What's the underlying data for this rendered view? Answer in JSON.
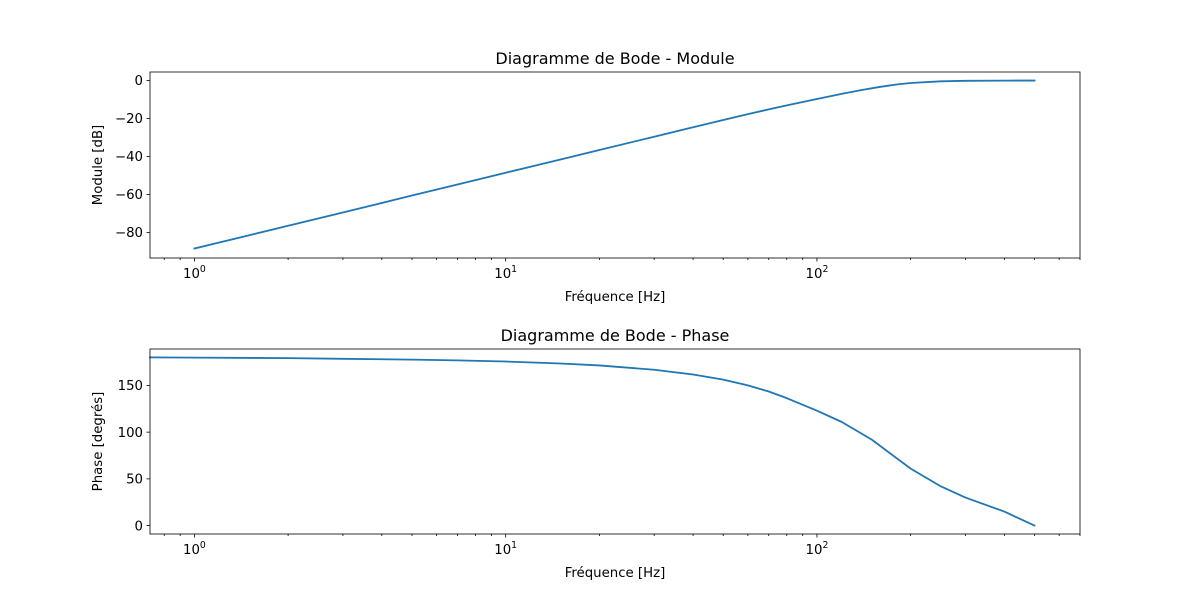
{
  "chart_data": [
    {
      "type": "line",
      "title": "Diagramme de Bode - Module",
      "xlabel": "Fréquence [Hz]",
      "ylabel": "Module [dB]",
      "xscale": "log",
      "xlim": [
        0.72,
        700
      ],
      "ylim": [
        -93.5,
        4.5
      ],
      "xticks": [
        {
          "value": 1,
          "base": "10",
          "exp": "0"
        },
        {
          "value": 10,
          "base": "10",
          "exp": "1"
        },
        {
          "value": 100,
          "base": "10",
          "exp": "2"
        }
      ],
      "yticks": [
        {
          "value": 0,
          "label": "0"
        },
        {
          "value": -20,
          "label": "−20"
        },
        {
          "value": -40,
          "label": "−40"
        },
        {
          "value": -60,
          "label": "−60"
        },
        {
          "value": -80,
          "label": "−80"
        }
      ],
      "grid": false,
      "series": [
        {
          "color": "#1f77b4",
          "x": [
            1,
            1.5,
            2,
            3,
            5,
            7,
            10,
            15,
            20,
            30,
            40,
            50,
            60,
            70,
            80,
            100,
            120,
            140,
            160,
            180,
            200,
            250,
            300,
            400,
            500
          ],
          "y": [
            -88.5,
            -81.5,
            -76.5,
            -69.5,
            -60.6,
            -54.8,
            -48.6,
            -41.6,
            -36.6,
            -29.6,
            -24.6,
            -20.8,
            -17.7,
            -15.2,
            -13.1,
            -9.7,
            -7.0,
            -4.9,
            -3.3,
            -2.1,
            -1.3,
            -0.4,
            -0.15,
            -0.03,
            0
          ]
        }
      ]
    },
    {
      "type": "line",
      "title": "Diagramme de Bode - Phase",
      "xlabel": "Fréquence [Hz]",
      "ylabel": "Phase [degrés]",
      "xscale": "log",
      "xlim": [
        0.72,
        700
      ],
      "ylim": [
        -9,
        189
      ],
      "xticks": [
        {
          "value": 1,
          "base": "10",
          "exp": "0"
        },
        {
          "value": 10,
          "base": "10",
          "exp": "1"
        },
        {
          "value": 100,
          "base": "10",
          "exp": "2"
        }
      ],
      "yticks": [
        {
          "value": 0,
          "label": "0"
        },
        {
          "value": 50,
          "label": "50"
        },
        {
          "value": 100,
          "label": "100"
        },
        {
          "value": 150,
          "label": "150"
        }
      ],
      "grid": false,
      "series": [
        {
          "color": "#1f77b4",
          "x": [
            0.72,
            1,
            2,
            3,
            5,
            7,
            10,
            15,
            20,
            30,
            40,
            50,
            60,
            70,
            80,
            100,
            120,
            150,
            200,
            250,
            300,
            400,
            500
          ],
          "y": [
            180,
            179.8,
            179.2,
            178.5,
            177.6,
            176.8,
            175.6,
            173.5,
            171.4,
            166.8,
            161.7,
            156.2,
            150.1,
            143.5,
            136.4,
            123,
            111,
            92,
            61,
            42,
            30,
            15,
            0
          ]
        }
      ]
    }
  ]
}
